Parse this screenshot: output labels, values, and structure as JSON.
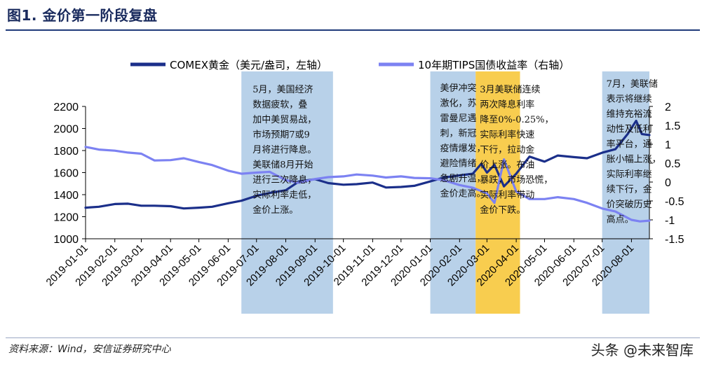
{
  "figure_title": "图1. 金价第一阶段复盘",
  "source": "资料来源：Wind，安信证券研究中心",
  "watermark": "头条 @未来智库",
  "chart_data": {
    "type": "line",
    "x_start": "2019-01-01",
    "x_end": "2020-08-20",
    "x_tick_labels": [
      "2019-01-01",
      "2019-02-01",
      "2019-03-01",
      "2019-04-01",
      "2019-05-01",
      "2019-06-01",
      "2019-07-01",
      "2019-08-01",
      "2019-09-01",
      "2019-10-01",
      "2019-11-01",
      "2019-12-01",
      "2020-01-01",
      "2020-02-01",
      "2020-03-01",
      "2020-04-01",
      "2020-05-01",
      "2020-06-01",
      "2020-07-01",
      "2020-08-01"
    ],
    "y_left": {
      "range": [
        1000,
        2200
      ],
      "ticks": [
        1000,
        1200,
        1400,
        1600,
        1800,
        2000,
        2200
      ]
    },
    "y_right": {
      "range": [
        -1.5,
        2
      ],
      "ticks": [
        "-1.5",
        "-1",
        "-0.5",
        "0",
        "0.5",
        "1",
        "1.5",
        "2"
      ]
    },
    "legend_position": "top",
    "series": [
      {
        "name": "COMEX黄金（美元/盎司，左轴）",
        "axis": "left",
        "color": "#1b2f8a",
        "points": [
          [
            "2019-01-01",
            1282
          ],
          [
            "2019-01-15",
            1290
          ],
          [
            "2019-02-01",
            1315
          ],
          [
            "2019-02-15",
            1318
          ],
          [
            "2019-03-01",
            1300
          ],
          [
            "2019-03-15",
            1300
          ],
          [
            "2019-04-01",
            1295
          ],
          [
            "2019-04-15",
            1275
          ],
          [
            "2019-05-01",
            1282
          ],
          [
            "2019-05-15",
            1290
          ],
          [
            "2019-06-01",
            1322
          ],
          [
            "2019-06-15",
            1345
          ],
          [
            "2019-07-01",
            1390
          ],
          [
            "2019-07-15",
            1415
          ],
          [
            "2019-08-01",
            1440
          ],
          [
            "2019-08-15",
            1520
          ],
          [
            "2019-09-01",
            1540
          ],
          [
            "2019-09-15",
            1505
          ],
          [
            "2019-10-01",
            1490
          ],
          [
            "2019-10-15",
            1495
          ],
          [
            "2019-11-01",
            1510
          ],
          [
            "2019-11-15",
            1465
          ],
          [
            "2019-12-01",
            1470
          ],
          [
            "2019-12-15",
            1480
          ],
          [
            "2020-01-01",
            1520
          ],
          [
            "2020-01-15",
            1555
          ],
          [
            "2020-02-01",
            1575
          ],
          [
            "2020-02-15",
            1590
          ],
          [
            "2020-02-24",
            1680
          ],
          [
            "2020-03-01",
            1600
          ],
          [
            "2020-03-09",
            1670
          ],
          [
            "2020-03-19",
            1475
          ],
          [
            "2020-04-01",
            1590
          ],
          [
            "2020-04-15",
            1745
          ],
          [
            "2020-05-01",
            1700
          ],
          [
            "2020-05-15",
            1755
          ],
          [
            "2020-06-01",
            1740
          ],
          [
            "2020-06-15",
            1730
          ],
          [
            "2020-07-01",
            1780
          ],
          [
            "2020-07-15",
            1812
          ],
          [
            "2020-07-28",
            1950
          ],
          [
            "2020-08-06",
            2070
          ],
          [
            "2020-08-12",
            1950
          ],
          [
            "2020-08-20",
            1940
          ]
        ]
      },
      {
        "name": "10年期TIPS国债收益率（右轴）",
        "axis": "right",
        "color": "#7c82f2",
        "points": [
          [
            "2019-01-01",
            0.93
          ],
          [
            "2019-01-15",
            0.86
          ],
          [
            "2019-02-01",
            0.83
          ],
          [
            "2019-02-15",
            0.78
          ],
          [
            "2019-03-01",
            0.75
          ],
          [
            "2019-03-15",
            0.57
          ],
          [
            "2019-04-01",
            0.58
          ],
          [
            "2019-04-15",
            0.63
          ],
          [
            "2019-05-01",
            0.53
          ],
          [
            "2019-05-15",
            0.45
          ],
          [
            "2019-06-01",
            0.3
          ],
          [
            "2019-06-15",
            0.22
          ],
          [
            "2019-07-01",
            0.25
          ],
          [
            "2019-07-15",
            0.27
          ],
          [
            "2019-08-01",
            0.05
          ],
          [
            "2019-08-15",
            -0.02
          ],
          [
            "2019-09-01",
            0.08
          ],
          [
            "2019-09-15",
            0.13
          ],
          [
            "2019-10-01",
            0.15
          ],
          [
            "2019-10-15",
            0.2
          ],
          [
            "2019-11-01",
            0.17
          ],
          [
            "2019-11-15",
            0.12
          ],
          [
            "2019-12-01",
            0.15
          ],
          [
            "2019-12-15",
            0.11
          ],
          [
            "2020-01-01",
            0.1
          ],
          [
            "2020-01-15",
            0.05
          ],
          [
            "2020-02-01",
            -0.08
          ],
          [
            "2020-02-15",
            -0.15
          ],
          [
            "2020-03-01",
            -0.3
          ],
          [
            "2020-03-09",
            -0.55
          ],
          [
            "2020-03-19",
            0.6
          ],
          [
            "2020-04-01",
            -0.25
          ],
          [
            "2020-04-15",
            -0.45
          ],
          [
            "2020-05-01",
            -0.45
          ],
          [
            "2020-05-15",
            -0.4
          ],
          [
            "2020-06-01",
            -0.45
          ],
          [
            "2020-06-15",
            -0.55
          ],
          [
            "2020-07-01",
            -0.7
          ],
          [
            "2020-07-15",
            -0.78
          ],
          [
            "2020-08-01",
            -1.0
          ],
          [
            "2020-08-10",
            -1.04
          ],
          [
            "2020-08-20",
            -1.02
          ]
        ]
      }
    ],
    "shaded_periods": [
      {
        "from": "2019-06-15",
        "to": "2019-09-20",
        "color": "#b8d1e9",
        "annotation": [
          "5月，美国经济",
          "数据疲软，叠",
          "加中美贸易战，",
          "市场预期7或9",
          "月将进行降息。",
          "美联储8月开始",
          "进行三次降息，",
          "实际利率走低，",
          "金价上涨。"
        ]
      },
      {
        "from": "2020-01-01",
        "to": "2020-02-18",
        "color": "#b8d1e9",
        "annotation": [
          "美伊冲突",
          "激化，苏",
          "雷曼尼遇",
          "刺，新冠",
          "疫情爆发，",
          "避险情绪",
          "急剧升温，",
          "金价走高。"
        ]
      },
      {
        "from": "2020-02-18",
        "to": "2020-04-05",
        "color": "#f8cd4f",
        "annotation": [
          "3月美联储连续",
          "两次降息利率",
          "降至0%-0.25%，",
          "实际利率快速",
          "下行，拉动金",
          "价上涨。布油",
          "暴跌，市场恐慌，",
          "实际利率带动",
          "金价下跌。"
        ]
      },
      {
        "from": "2020-07-01",
        "to": "2020-08-20",
        "color": "#b8d1e9",
        "annotation": [
          "7月，美联储",
          "表示将继续",
          "维持充裕流",
          "动性及低利",
          "率平台，通",
          "胀小幅上涨，",
          "实际利率继",
          "续下行，金",
          "价突破历史",
          "高点。"
        ]
      }
    ]
  }
}
